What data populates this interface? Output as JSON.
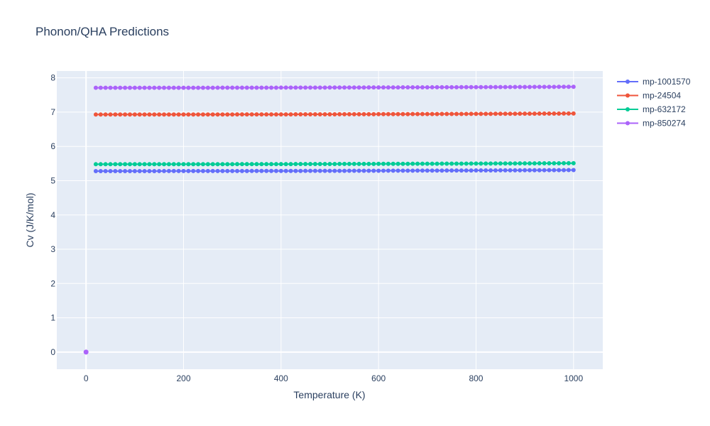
{
  "chart_data": {
    "type": "line",
    "title": "Phonon/QHA Predictions",
    "xlabel": "Temperature (K)",
    "ylabel": "Cv (J/K/mol)",
    "xlim": [
      -60,
      1060
    ],
    "ylim": [
      -0.5,
      8.2
    ],
    "xticks": [
      0,
      200,
      400,
      600,
      800,
      1000
    ],
    "yticks": [
      0,
      1,
      2,
      3,
      4,
      5,
      6,
      7,
      8
    ],
    "grid": true,
    "legend_position": "top-right",
    "background": "#e5ecf6",
    "x_range": {
      "start": 20,
      "end": 1000,
      "step": 10
    },
    "series": [
      {
        "name": "mp-1001570",
        "color": "#636efa",
        "start_value": 5.28,
        "end_value": 5.31,
        "extra_points": []
      },
      {
        "name": "mp-24504",
        "color": "#ef553b",
        "start_value": 6.93,
        "end_value": 6.96,
        "extra_points": []
      },
      {
        "name": "mp-632172",
        "color": "#00cc96",
        "start_value": 5.48,
        "end_value": 5.51,
        "extra_points": []
      },
      {
        "name": "mp-850274",
        "color": "#ab63fa",
        "start_value": 7.71,
        "end_value": 7.74,
        "extra_points": [
          [
            0,
            0
          ]
        ]
      }
    ]
  }
}
